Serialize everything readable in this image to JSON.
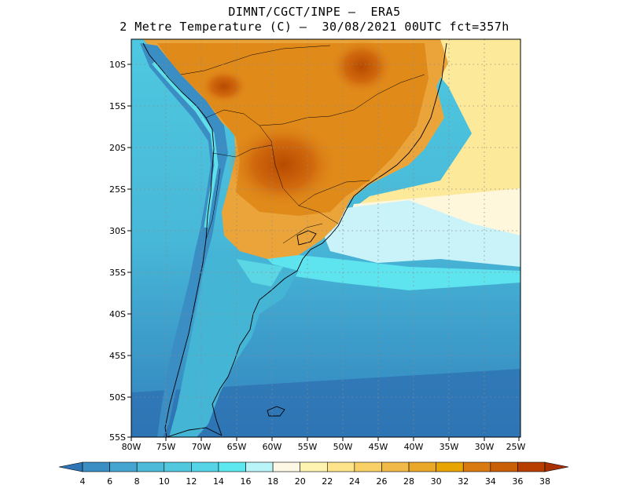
{
  "title_line1": "DIMNT/CGCT/INPE –  ERA5",
  "title_line2": "2 Metre Temperature (C) –  30/08/2021 00UTC fct=357h",
  "map": {
    "lon_range": [
      -80,
      -25
    ],
    "lat_range": [
      -55,
      -7
    ],
    "lat_labels": [
      "10S",
      "15S",
      "20S",
      "25S",
      "30S",
      "35S",
      "40S",
      "45S",
      "50S",
      "55S"
    ],
    "lon_labels": [
      "80W",
      "75W",
      "70W",
      "65W",
      "60W",
      "55W",
      "50W",
      "45W",
      "40W",
      "35W",
      "30W",
      "25W"
    ],
    "grid": "dotted",
    "ocean_color": "#4fc2dc",
    "hot_color": "#e08a1a"
  },
  "colorbar": {
    "labels": [
      "4",
      "6",
      "8",
      "10",
      "12",
      "14",
      "16",
      "18",
      "20",
      "22",
      "24",
      "26",
      "28",
      "30",
      "32",
      "34",
      "36",
      "38"
    ],
    "colors": [
      "#2e75b6",
      "#3a8ec4",
      "#44a6d0",
      "#4dbad9",
      "#52c8df",
      "#54d4e6",
      "#5de8f0",
      "#b8f4f8",
      "#fdf7e6",
      "#fef3b0",
      "#fde38a",
      "#f8d066",
      "#f0b948",
      "#eaa82a",
      "#e8a400",
      "#d97a10",
      "#c96008",
      "#b83e00",
      "#a83000"
    ]
  }
}
